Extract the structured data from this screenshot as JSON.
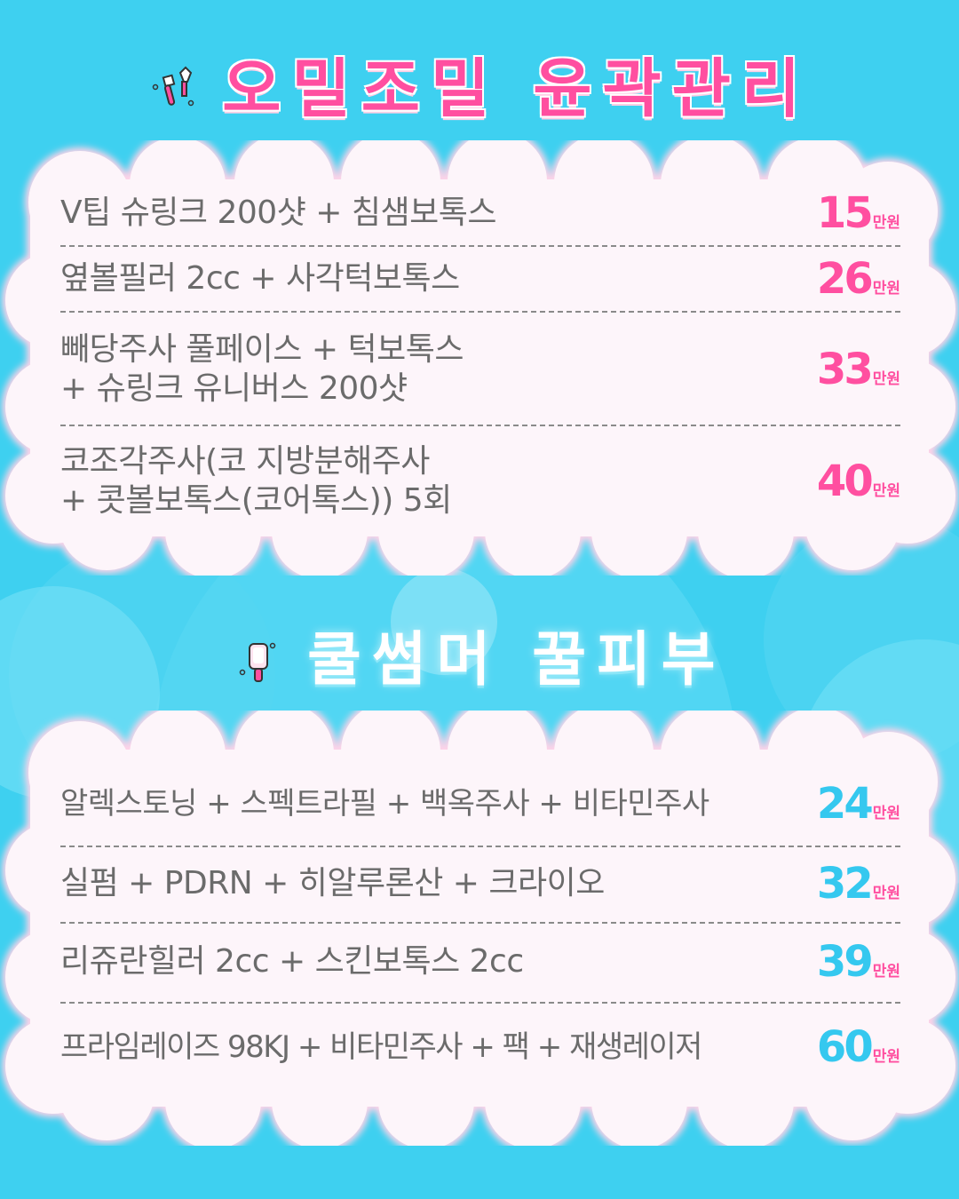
{
  "section1": {
    "title": "오밀조밀 윤곽관리",
    "icon": "makeup-brush-icon",
    "accent": "#ff4fa0",
    "items": [
      {
        "label": "V팁 슈링크 200샷 + 침샘보톡스",
        "price": "15",
        "unit": "만원"
      },
      {
        "label": "옆볼필러 2cc + 사각턱보톡스",
        "price": "26",
        "unit": "만원"
      },
      {
        "label": "빼당주사 풀페이스 + 턱보톡스\n+ 슈링크 유니버스 200샷",
        "price": "33",
        "unit": "만원"
      },
      {
        "label": "코조각주사(코 지방분해주사\n+ 콧볼보톡스(코어톡스)) 5회",
        "price": "40",
        "unit": "만원"
      }
    ]
  },
  "section2": {
    "title": "쿨썸머 꿀피부",
    "icon": "popsicle-icon",
    "accent": "#35c8ef",
    "items": [
      {
        "label": "알렉스토닝 + 스펙트라필 + 백옥주사 + 비타민주사",
        "price": "24",
        "unit": "만원"
      },
      {
        "label": "실펌 + PDRN + 히알루론산 + 크라이오",
        "price": "32",
        "unit": "만원"
      },
      {
        "label": "리쥬란힐러 2cc + 스킨보톡스 2cc",
        "price": "39",
        "unit": "만원"
      },
      {
        "label": "프라임레이즈 98KJ + 비타민주사 + 팩 + 재생레이저",
        "price": "60",
        "unit": "만원"
      }
    ]
  }
}
